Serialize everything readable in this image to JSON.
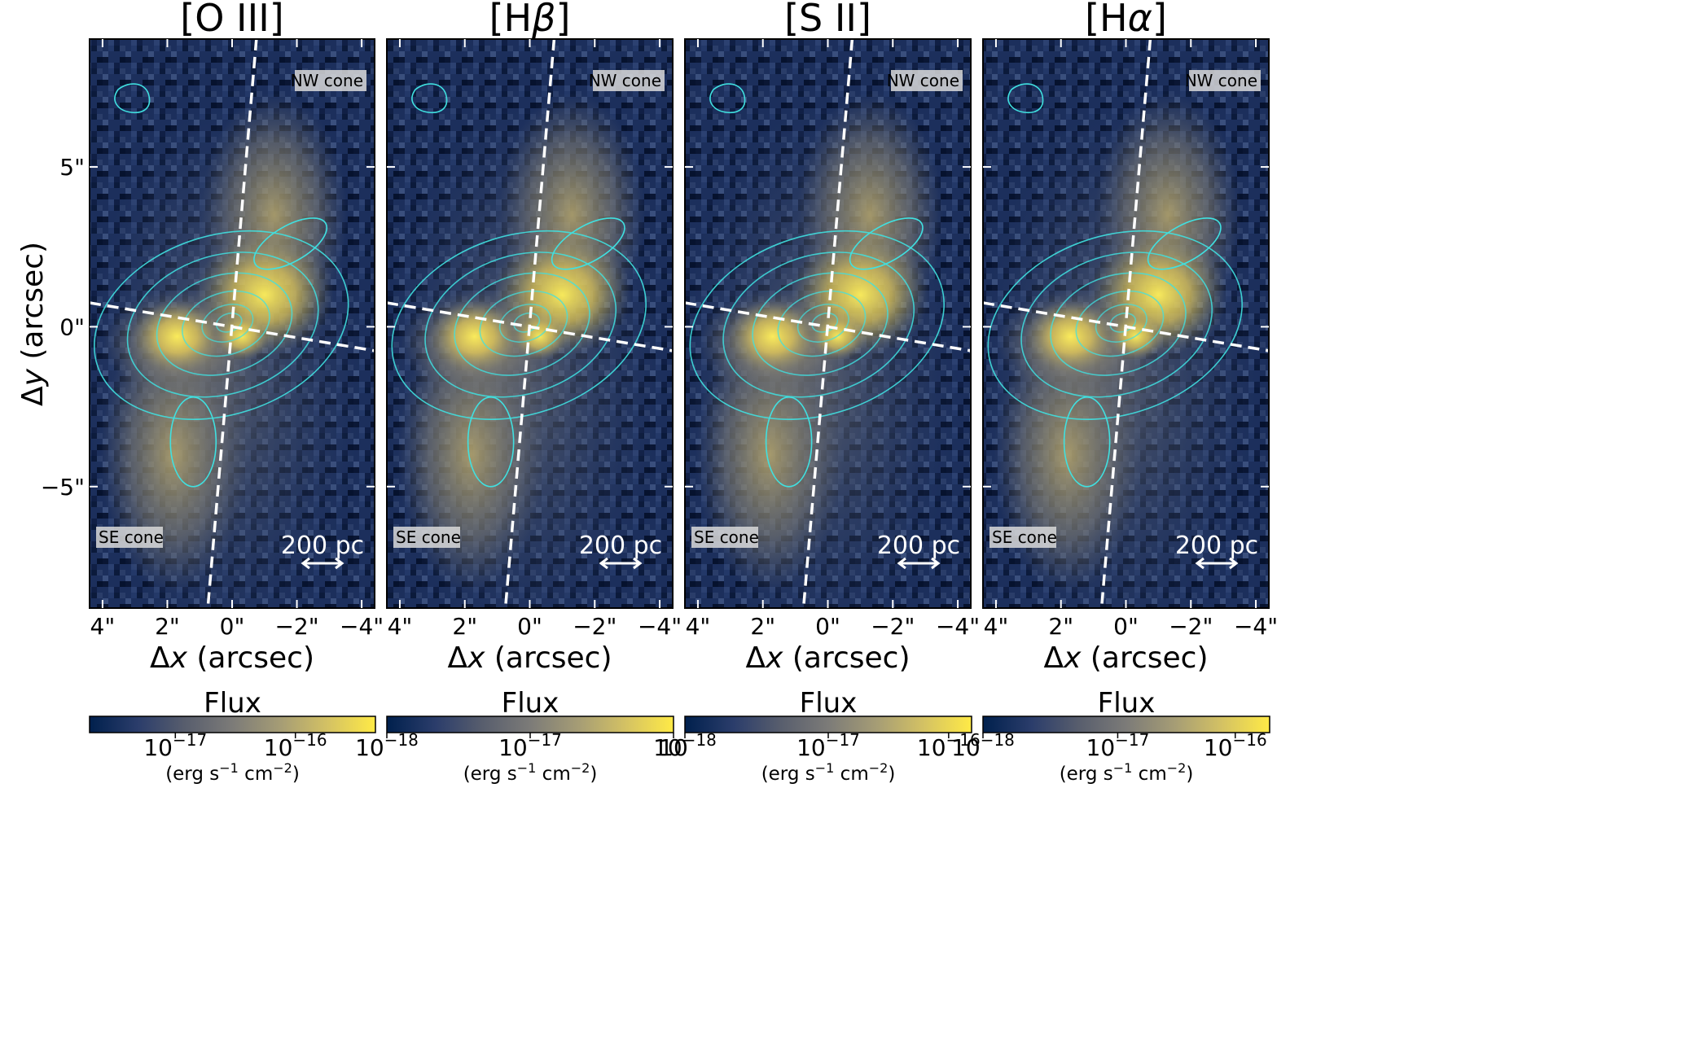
{
  "figure": {
    "ylabel_prefix": "Δ",
    "ylabel_var": "y",
    "ylabel_unit": " (arcsec)",
    "xlabel_prefix": "Δ",
    "xlabel_var": "x",
    "xlabel_unit": " (arcsec)"
  },
  "colors": {
    "cmap": [
      "#00204d",
      "#2b3d6b",
      "#575d6d",
      "#7c7b78",
      "#a69d75",
      "#d3c164",
      "#ffea46"
    ],
    "contour": "#40e0e0",
    "axis_line": "#ffffff",
    "label_box": "#d9d9d9"
  },
  "chart_data": [
    {
      "type": "heatmap",
      "title_text": "[O III]",
      "title_pre": "[O III]",
      "title_var": "",
      "title_post": "",
      "xticks": [
        "4\"",
        "2\"",
        "0\"",
        "−2\"",
        "−4\""
      ],
      "xtick_values": [
        4,
        2,
        0,
        -2,
        -4
      ],
      "xlim": [
        4.4,
        -4.4
      ],
      "yticks": [
        "5\"",
        "0\"",
        "−5\""
      ],
      "ytick_values": [
        5,
        0,
        -5
      ],
      "ylim": [
        -8.8,
        9.0
      ],
      "label_nw": "NW cone",
      "label_se": "SE cone",
      "scalebar": "200 pc",
      "colorbar_title": "Flux",
      "colorbar_ticks": [
        {
          "base": "10",
          "exp": "−17",
          "pos": 0.3
        },
        {
          "base": "10",
          "exp": "−16",
          "pos": 0.72
        }
      ],
      "colorbar_unit": {
        "a": "(erg s",
        "e1": "−1",
        "b": " cm",
        "e2": "−2",
        "c": ")"
      }
    },
    {
      "type": "heatmap",
      "title_text": "[Hβ]",
      "title_pre": "[H",
      "title_var": "β",
      "title_post": "]",
      "xticks": [
        "4\"",
        "2\"",
        "0\"",
        "−2\"",
        "−4\""
      ],
      "xtick_values": [
        4,
        2,
        0,
        -2,
        -4
      ],
      "xlim": [
        4.4,
        -4.4
      ],
      "yticks": [
        "",
        "",
        ""
      ],
      "ytick_values": [
        5,
        0,
        -5
      ],
      "ylim": [
        -8.8,
        9.0
      ],
      "label_nw": "NW cone",
      "label_se": "SE cone",
      "scalebar": "200 pc",
      "colorbar_title": "Flux",
      "colorbar_ticks": [
        {
          "base": "10",
          "exp": "−18",
          "pos": 0.0
        },
        {
          "base": "10",
          "exp": "−17",
          "pos": 0.5
        },
        {
          "base": "10",
          "exp": "",
          "pos": 1.0
        }
      ],
      "colorbar_unit": {
        "a": "(erg s",
        "e1": "−1",
        "b": " cm",
        "e2": "−2",
        "c": ")"
      }
    },
    {
      "type": "heatmap",
      "title_text": "[S II]",
      "title_pre": "[S II]",
      "title_var": "",
      "title_post": "",
      "xticks": [
        "4\"",
        "2\"",
        "0\"",
        "−2\"",
        "−4\""
      ],
      "xtick_values": [
        4,
        2,
        0,
        -2,
        -4
      ],
      "xlim": [
        4.4,
        -4.4
      ],
      "yticks": [
        "",
        "",
        ""
      ],
      "ytick_values": [
        5,
        0,
        -5
      ],
      "ylim": [
        -8.8,
        9.0
      ],
      "label_nw": "NW cone",
      "label_se": "SE cone",
      "scalebar": "200 pc",
      "colorbar_title": "Flux",
      "colorbar_ticks": [
        {
          "base": "10",
          "exp": "−18",
          "pos": 0.0
        },
        {
          "base": "10",
          "exp": "−17",
          "pos": 0.5
        },
        {
          "base": "10",
          "exp": "−16",
          "pos": 0.92
        }
      ],
      "colorbar_unit": {
        "a": "(erg s",
        "e1": "−1",
        "b": " cm",
        "e2": "−2",
        "c": ")"
      }
    },
    {
      "type": "heatmap",
      "title_text": "[Hα]",
      "title_pre": "[H",
      "title_var": "α",
      "title_post": "]",
      "xticks": [
        "4\"",
        "2\"",
        "0\"",
        "−2\"",
        "−4\""
      ],
      "xtick_values": [
        4,
        2,
        0,
        -2,
        -4
      ],
      "xlim": [
        4.4,
        -4.4
      ],
      "yticks": [
        "",
        "",
        ""
      ],
      "ytick_values": [
        5,
        0,
        -5
      ],
      "ylim": [
        -8.8,
        9.0
      ],
      "label_nw": "NW cone",
      "label_se": "SE cone",
      "scalebar": "200 pc",
      "colorbar_title": "Flux",
      "colorbar_ticks": [
        {
          "base": "10",
          "exp": "−18",
          "pos": 0.0
        },
        {
          "base": "10",
          "exp": "−17",
          "pos": 0.47
        },
        {
          "base": "10",
          "exp": "−16",
          "pos": 0.88
        }
      ],
      "colorbar_unit": {
        "a": "(erg s",
        "e1": "−1",
        "b": " cm",
        "e2": "−2",
        "c": ")"
      }
    }
  ]
}
